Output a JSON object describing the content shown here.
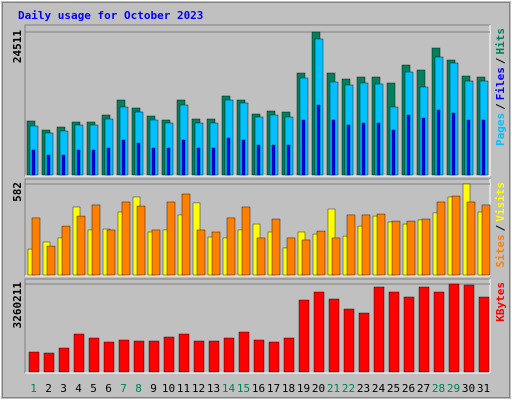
{
  "chart_data": [
    {
      "type": "bar",
      "title": "Daily usage for October 2023",
      "legend_separator": "/",
      "series": [
        {
          "name": "Pages",
          "color": "#00c0ff",
          "values": [
            8399,
            7199,
            7542,
            8571,
            8571,
            9599,
            11656,
            10799,
            9428,
            8913,
            11999,
            8913,
            8913,
            12856,
            12342,
            9942,
            10285,
            9942,
            16627,
            23312,
            15941,
            15427,
            15770,
            15598,
            11656,
            17655,
            15084,
            20226,
            19198,
            16113,
            16113
          ]
        },
        {
          "name": "Files",
          "color": "#0000ff",
          "values": [
            4285,
            3428,
            3428,
            4285,
            4285,
            4628,
            5999,
            5485,
            4628,
            4628,
            5999,
            4628,
            4628,
            6342,
            5999,
            5142,
            5142,
            5142,
            9428,
            11999,
            9428,
            8571,
            8913,
            8913,
            7713,
            10285,
            9770,
            11142,
            10627,
            9428,
            9428
          ]
        },
        {
          "name": "Hits",
          "color": "#00805c",
          "values": [
            9256,
            7713,
            8228,
            9085,
            9085,
            10285,
            12856,
            11485,
            10113,
            9428,
            12856,
            9599,
            9599,
            13542,
            12856,
            10456,
            10970,
            10799,
            17484,
            24511,
            17484,
            16455,
            16798,
            16798,
            15770,
            18855,
            17998,
            21769,
            19712,
            16970,
            16798
          ]
        }
      ],
      "ylim": [
        0,
        24511
      ],
      "yticks": [
        24511
      ]
    },
    {
      "type": "bar",
      "legend_separator": "/",
      "series": [
        {
          "name": "Sites",
          "color": "#ff8000",
          "values": [
            365,
            185,
            313,
            377,
            448,
            288,
            467,
            441,
            288,
            467,
            518,
            288,
            275,
            365,
            435,
            237,
            358,
            237,
            224,
            281,
            237,
            384,
            384,
            390,
            345,
            345,
            358,
            467,
            505,
            467,
            448
          ]
        },
        {
          "name": "Visits",
          "color": "#ffff00",
          "values": [
            166,
            211,
            237,
            435,
            288,
            294,
            403,
            499,
            275,
            288,
            384,
            461,
            243,
            237,
            288,
            326,
            275,
            173,
            275,
            262,
            422,
            249,
            313,
            377,
            339,
            326,
            352,
            397,
            499,
            582,
            403
          ]
        }
      ],
      "ylim": [
        0,
        582
      ],
      "yticks": [
        582
      ]
    },
    {
      "type": "bar",
      "series": [
        {
          "name": "KBytes",
          "color": "#ff0000",
          "values": [
            740960,
            703912,
            889152,
            1407824,
            1259632,
            1111440,
            1185536,
            1148488,
            1148488,
            1296680,
            1407824,
            1148488,
            1148488,
            1259632,
            1481920,
            1185536,
            1111440,
            1259632,
            2667456,
            2963840,
            2704504,
            2334024,
            2185832,
            3149080,
            2963840,
            2778600,
            3149080,
            2963840,
            3260211,
            3223176,
            2778600
          ]
        }
      ],
      "ylim": [
        0,
        3260211
      ],
      "yticks": [
        3260211
      ],
      "categories": [
        "1",
        "2",
        "3",
        "4",
        "5",
        "6",
        "7",
        "8",
        "9",
        "10",
        "11",
        "12",
        "13",
        "14",
        "15",
        "16",
        "17",
        "18",
        "19",
        "20",
        "21",
        "22",
        "23",
        "24",
        "25",
        "26",
        "27",
        "28",
        "29",
        "30",
        "31"
      ],
      "label_colors": [
        "#00805c",
        "#000000",
        "#000000",
        "#000000",
        "#000000",
        "#000000",
        "#00805c",
        "#00805c",
        "#000000",
        "#000000",
        "#000000",
        "#000000",
        "#000000",
        "#00805c",
        "#00805c",
        "#000000",
        "#000000",
        "#000000",
        "#000000",
        "#000000",
        "#00805c",
        "#00805c",
        "#000000",
        "#000000",
        "#000000",
        "#000000",
        "#000000",
        "#00805c",
        "#00805c",
        "#000000",
        "#000000"
      ]
    }
  ]
}
